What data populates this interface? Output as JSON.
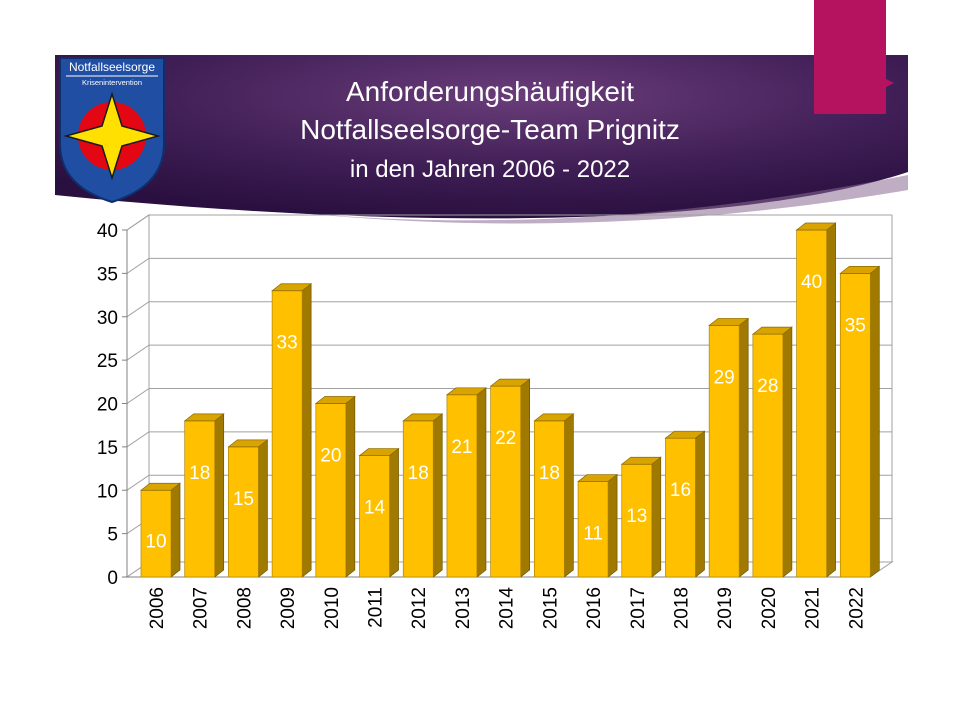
{
  "slide": {
    "accent_color": "#b5135f",
    "banner_color": "#3d1d52"
  },
  "logo": {
    "name": "Notfallseelsorge",
    "subtitle": "Krisenintervention"
  },
  "chart_data": {
    "type": "bar",
    "title_lines": [
      "Anforderungshäufigkeit",
      "Notfallseelsorge-Team  Prignitz",
      "in den Jahren 2006 - 2022"
    ],
    "categories": [
      "2006",
      "2007",
      "2008",
      "2009",
      "2010",
      "2011",
      "2012",
      "2013",
      "2014",
      "2015",
      "2016",
      "2017",
      "2018",
      "2019",
      "2020",
      "2021",
      "2022"
    ],
    "values": [
      10,
      18,
      15,
      33,
      20,
      14,
      18,
      21,
      22,
      18,
      11,
      13,
      16,
      29,
      28,
      40,
      35
    ],
    "y_ticks": [
      "0",
      "5",
      "10",
      "15",
      "20",
      "25",
      "30",
      "35",
      "40"
    ],
    "ylim": [
      0,
      40
    ],
    "grid": true,
    "bar_color": "#ffc000",
    "data_labels": true,
    "xlabel": "",
    "ylabel": ""
  }
}
